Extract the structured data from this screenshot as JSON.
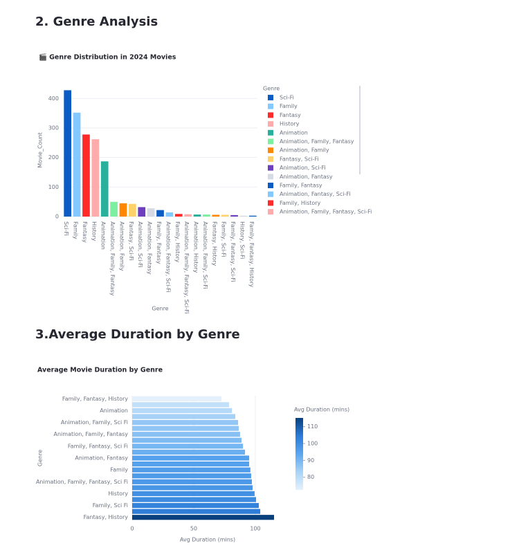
{
  "headings": [
    "2. Genre Analysis",
    "3.Average Duration by Genre"
  ],
  "chart_data": [
    {
      "type": "bar",
      "title": "🎬 Genre Distribution in 2024 Movies",
      "x_label": "Genre",
      "y_label": "Movie_Count",
      "legend_title": "Genre",
      "categories": [
        "Sci-Fi",
        "Family",
        "Fantasy",
        "History",
        "Animation",
        "Animation, Family, Fantasy",
        "Animation, Family",
        "Fantasy, Sci-Fi",
        "Animation, Sci-Fi",
        "Animation, Fantasy",
        "Family, Fantasy",
        "Animation, Fantasy, Sci-Fi",
        "Family, History",
        "Animation, Family, Fantasy, Sci-Fi",
        "Animation, History",
        "Animation, Family, Sci-Fi",
        "Fantasy, History",
        "Family, Sci-Fi",
        "Family, Fantasy, Sci-Fi",
        "History, Sci-Fi",
        "Family, Fantasy, History"
      ],
      "values": [
        428,
        352,
        278,
        262,
        187,
        50,
        45,
        43,
        32,
        28,
        22,
        14,
        9,
        8,
        7,
        7,
        6,
        6,
        5,
        3,
        3
      ],
      "colors": [
        "#0b5bc4",
        "#83c9ff",
        "#ff2b2b",
        "#ffabab",
        "#29b09d",
        "#7defa1",
        "#ff8700",
        "#ffd16a",
        "#6d3fc0",
        "#d5dae5",
        "#0b5bc4",
        "#83c9ff",
        "#ff2b2b",
        "#ffabab",
        "#29b09d",
        "#7defa1",
        "#ff8700",
        "#ffd16a",
        "#6d3fc0",
        "#d5dae5",
        "#0b5bc4"
      ],
      "ylim": [
        0,
        450
      ],
      "yticks": [
        0,
        100,
        200,
        300,
        400
      ],
      "grid": true,
      "legend": "right"
    },
    {
      "type": "hbar",
      "title": "Average Movie Duration by Genre",
      "x_label": "Avg Duration (mins)",
      "y_label": "Genre",
      "colorbar_title": "Avg Duration (mins)",
      "categories": [
        "Family, Fantasy, History",
        null,
        "Animation",
        null,
        "Animation, Family, Sci Fi",
        null,
        "Animation, Family, Fantasy",
        null,
        "Family, Fantasy, Sci Fi",
        null,
        "Animation, Fantasy",
        null,
        "Family",
        null,
        "Animation, Family, Fantasy, Sci Fi",
        null,
        "History",
        null,
        "Family, Sci Fi",
        null,
        "Fantasy, History"
      ],
      "values": [
        72.5,
        78.7,
        81,
        83.7,
        86,
        86.5,
        87.6,
        88.8,
        90,
        91.6,
        95,
        95,
        96,
        96.6,
        97.2,
        97.8,
        99.4,
        100.6,
        102.8,
        104,
        115.2
      ],
      "xlim": [
        0,
        118
      ],
      "xticks": [
        0,
        50,
        100
      ],
      "cticks": [
        80,
        90,
        100,
        110
      ],
      "colorscale": [
        "#e4f1fc",
        "#a9d3f7",
        "#5aa6f0",
        "#2b7bd8",
        "#08407e"
      ],
      "grid": true
    }
  ]
}
